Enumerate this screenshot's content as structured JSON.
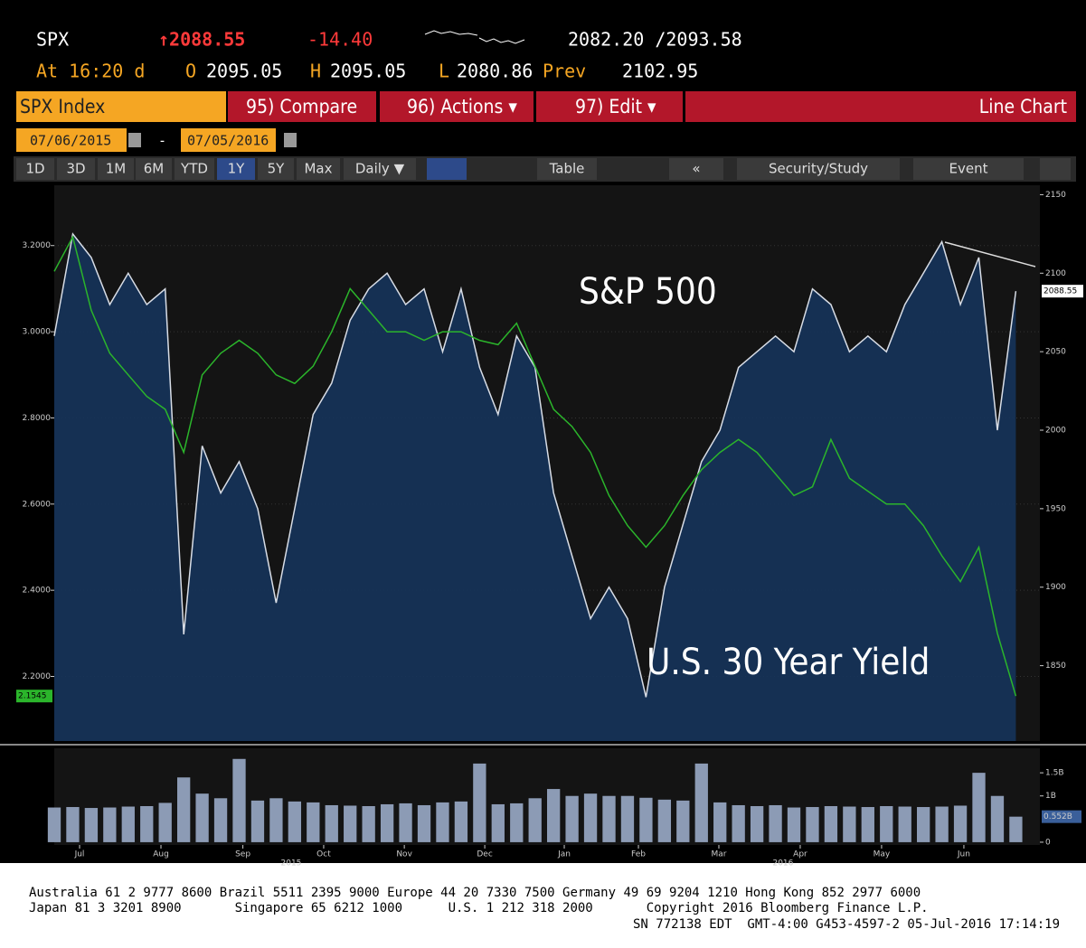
{
  "header": {
    "ticker": "SPX",
    "last": "↑2088.55",
    "change": "-14.40",
    "range": "2082.20 /2093.58",
    "time": "At 16:20 d",
    "open_label": "O",
    "open": "2095.05",
    "high_label": "H",
    "high": "2095.05",
    "low_label": "L",
    "low": "2080.86",
    "prev_label": "Prev",
    "prev": "2102.95"
  },
  "toolbar": {
    "security": "SPX Index",
    "compare": "95) Compare",
    "actions": "96) Actions ▾",
    "edit": "97) Edit ▾",
    "view": "Line Chart"
  },
  "dates": {
    "start": "07/06/2015",
    "separator": "-",
    "end": "07/05/2016"
  },
  "buttons": [
    "1D",
    "3D",
    "1M",
    "6M",
    "YTD",
    "1Y",
    "5Y",
    "Max",
    "Daily ▼",
    "Table",
    "«",
    "Security/Study",
    "Event"
  ],
  "footer": [
    "Australia 61 2 9777 8600 Brazil 5511 2395 9000 Europe 44 20 7330 7500 Germany 49 69 9204 1210 Hong Kong 852 2977 6000",
    "Japan 81 3 3201 8900       Singapore 65 6212 1000      U.S. 1 212 318 2000       Copyright 2016 Bloomberg Finance L.P.",
    "SN 772138 EDT  GMT-4:00 G453-4597-2 05-Jul-2016 17:14:19"
  ],
  "chart_data": [
    {
      "type": "line",
      "annotations": [
        "S&P 500",
        "U.S. 30 Year Yield"
      ],
      "x": [
        0,
        1,
        2,
        3,
        4,
        5,
        6,
        7,
        8,
        9,
        10,
        11,
        12,
        13,
        14,
        15,
        16,
        17,
        18,
        19,
        20,
        21,
        22,
        23,
        24,
        25,
        26,
        27,
        28,
        29,
        30,
        31,
        32,
        33,
        34,
        35,
        36,
        37,
        38,
        39,
        40,
        41,
        42,
        43,
        44,
        45,
        46,
        47,
        48,
        49,
        50,
        51,
        52
      ],
      "xlim": [
        0,
        53.3
      ],
      "series": [
        {
          "name": "S&P 500",
          "color": "#d8dde6",
          "axis": "y2",
          "values": [
            2060,
            2125,
            2110,
            2080,
            2100,
            2080,
            2090,
            1870,
            1990,
            1960,
            1980,
            1950,
            1890,
            1950,
            2010,
            2030,
            2070,
            2090,
            2100,
            2080,
            2090,
            2050,
            2090,
            2040,
            2010,
            2060,
            2040,
            1960,
            1920,
            1880,
            1900,
            1880,
            1830,
            1900,
            1940,
            1980,
            2000,
            2040,
            2050,
            2060,
            2050,
            2090,
            2080,
            2050,
            2060,
            2050,
            2080,
            2100,
            2120,
            2080,
            2110,
            2000,
            2088.55
          ],
          "value_labels": {
            "52": "2088.55"
          }
        },
        {
          "name": "U.S. 30 Year Yield",
          "color": "#2bb52b",
          "values": [
            3.14,
            3.22,
            3.05,
            2.95,
            2.9,
            2.85,
            2.82,
            2.72,
            2.9,
            2.95,
            2.98,
            2.95,
            2.9,
            2.88,
            2.92,
            3.0,
            3.1,
            3.05,
            3.0,
            3.0,
            2.98,
            3.0,
            3.0,
            2.98,
            2.97,
            3.02,
            2.92,
            2.82,
            2.78,
            2.72,
            2.62,
            2.55,
            2.5,
            2.55,
            2.62,
            2.68,
            2.72,
            2.75,
            2.72,
            2.67,
            2.62,
            2.64,
            2.75,
            2.66,
            2.63,
            2.6,
            2.6,
            2.55,
            2.48,
            2.42,
            2.5,
            2.3,
            2.1545
          ],
          "value_labels": {
            "52": "2.1545"
          }
        }
      ],
      "ylim": [
        2.05,
        3.34
      ],
      "yticks": [
        {
          "value": 2.2,
          "label": "2.2000"
        },
        {
          "value": 2.4,
          "label": "2.4000"
        },
        {
          "value": 2.6,
          "label": "2.6000"
        },
        {
          "value": 2.8,
          "label": "2.8000"
        },
        {
          "value": 3.0,
          "label": "3.0000"
        },
        {
          "value": 3.2,
          "label": "3.2000"
        }
      ],
      "y2lim": [
        1802,
        2156
      ],
      "y2ticks": [
        1850,
        1900,
        1950,
        2000,
        2050,
        2100,
        2150
      ]
    },
    {
      "type": "bar",
      "color": "#8c9bb5",
      "x": [
        0,
        1,
        2,
        3,
        4,
        5,
        6,
        7,
        8,
        9,
        10,
        11,
        12,
        13,
        14,
        15,
        16,
        17,
        18,
        19,
        20,
        21,
        22,
        23,
        24,
        25,
        26,
        27,
        28,
        29,
        30,
        31,
        32,
        33,
        34,
        35,
        36,
        37,
        38,
        39,
        40,
        41,
        42,
        43,
        44,
        45,
        46,
        47,
        48,
        49,
        50,
        51,
        52
      ],
      "values": [
        750000000.0,
        760000000.0,
        740000000.0,
        750000000.0,
        770000000.0,
        780000000.0,
        850000000.0,
        1400000000.0,
        1050000000.0,
        950000000.0,
        1800000000.0,
        900000000.0,
        950000000.0,
        880000000.0,
        860000000.0,
        800000000.0,
        790000000.0,
        780000000.0,
        820000000.0,
        840000000.0,
        800000000.0,
        860000000.0,
        880000000.0,
        1700000000.0,
        820000000.0,
        840000000.0,
        950000000.0,
        1150000000.0,
        1000000000.0,
        1050000000.0,
        1000000000.0,
        1000000000.0,
        960000000.0,
        920000000.0,
        900000000.0,
        1700000000.0,
        860000000.0,
        800000000.0,
        780000000.0,
        800000000.0,
        750000000.0,
        760000000.0,
        780000000.0,
        770000000.0,
        760000000.0,
        780000000.0,
        770000000.0,
        760000000.0,
        770000000.0,
        790000000.0,
        1500000000.0,
        1000000000.0,
        552000000.0
      ],
      "value_labels": {
        "52": "0.552B"
      },
      "xlim": [
        0,
        53.3
      ],
      "xticks": [
        {
          "value": 1.37,
          "label": "Jul"
        },
        {
          "value": 5.77,
          "label": "Aug"
        },
        {
          "value": 10.2,
          "label": "Sep"
        },
        {
          "value": 14.57,
          "label": "Oct"
        },
        {
          "value": 18.93,
          "label": "Nov"
        },
        {
          "value": 23.28,
          "label": "Dec"
        },
        {
          "value": 27.58,
          "label": "Jan"
        },
        {
          "value": 31.59,
          "label": "Feb"
        },
        {
          "value": 35.94,
          "label": "Mar"
        },
        {
          "value": 40.34,
          "label": "Apr"
        },
        {
          "value": 44.74,
          "label": "May"
        },
        {
          "value": 49.19,
          "label": "Jun"
        }
      ],
      "year_labels": [
        {
          "value": 12.81,
          "label": "2015"
        },
        {
          "value": 39.41,
          "label": "2016"
        }
      ],
      "ylim": [
        -60000000.0,
        2030000000.0
      ],
      "yticks": [
        0,
        {
          "value": 1000000000.0,
          "label": "1B"
        },
        {
          "value": 1500000000.0,
          "label": "1.5B"
        }
      ]
    }
  ]
}
